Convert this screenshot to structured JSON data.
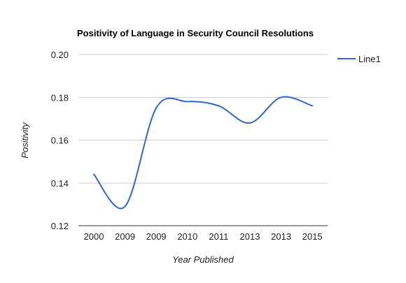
{
  "chart_data": {
    "type": "line",
    "title": "Positivity of Language in Security Council Resolutions",
    "xlabel": "Year Published",
    "ylabel": "Positivity",
    "categories": [
      "2000",
      "2009",
      "2009",
      "2010",
      "2011",
      "2013",
      "2013",
      "2015"
    ],
    "series": [
      {
        "name": "Line1",
        "color": "#3366cc",
        "values": [
          0.144,
          0.129,
          0.175,
          0.178,
          0.176,
          0.168,
          0.18,
          0.176
        ]
      }
    ],
    "ylim": [
      0.12,
      0.2
    ],
    "yticks": [
      "0.12",
      "0.14",
      "0.16",
      "0.18",
      "0.20"
    ],
    "grid": true,
    "legend_position": "right",
    "curve": "smooth"
  }
}
